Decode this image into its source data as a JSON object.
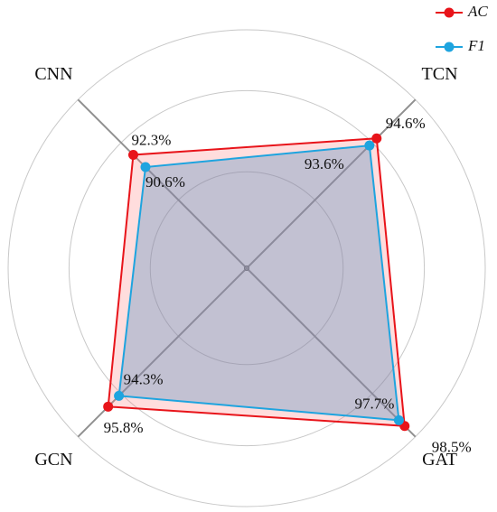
{
  "chart_data": {
    "type": "radar",
    "categories": [
      "TCN",
      "GAT",
      "GCN",
      "CNN"
    ],
    "rlim": [
      76.5,
      100
    ],
    "rticks": [
      86,
      94,
      100
    ],
    "legend": "upper right",
    "series": [
      {
        "name": "AC",
        "color": "#e8141a",
        "fill": "rgba(255,120,120,0.25)",
        "values": [
          94.6,
          98.5,
          95.8,
          92.3
        ],
        "value_labels": [
          "94.6%",
          "98.5%",
          "95.8%",
          "92.3%"
        ]
      },
      {
        "name": "F1",
        "color": "#1ea4df",
        "fill": "rgba(80,140,190,0.35)",
        "values": [
          93.6,
          97.7,
          94.3,
          90.6
        ],
        "value_labels": [
          "93.6%",
          "97.7%",
          "94.3%",
          "90.6%"
        ]
      }
    ]
  }
}
